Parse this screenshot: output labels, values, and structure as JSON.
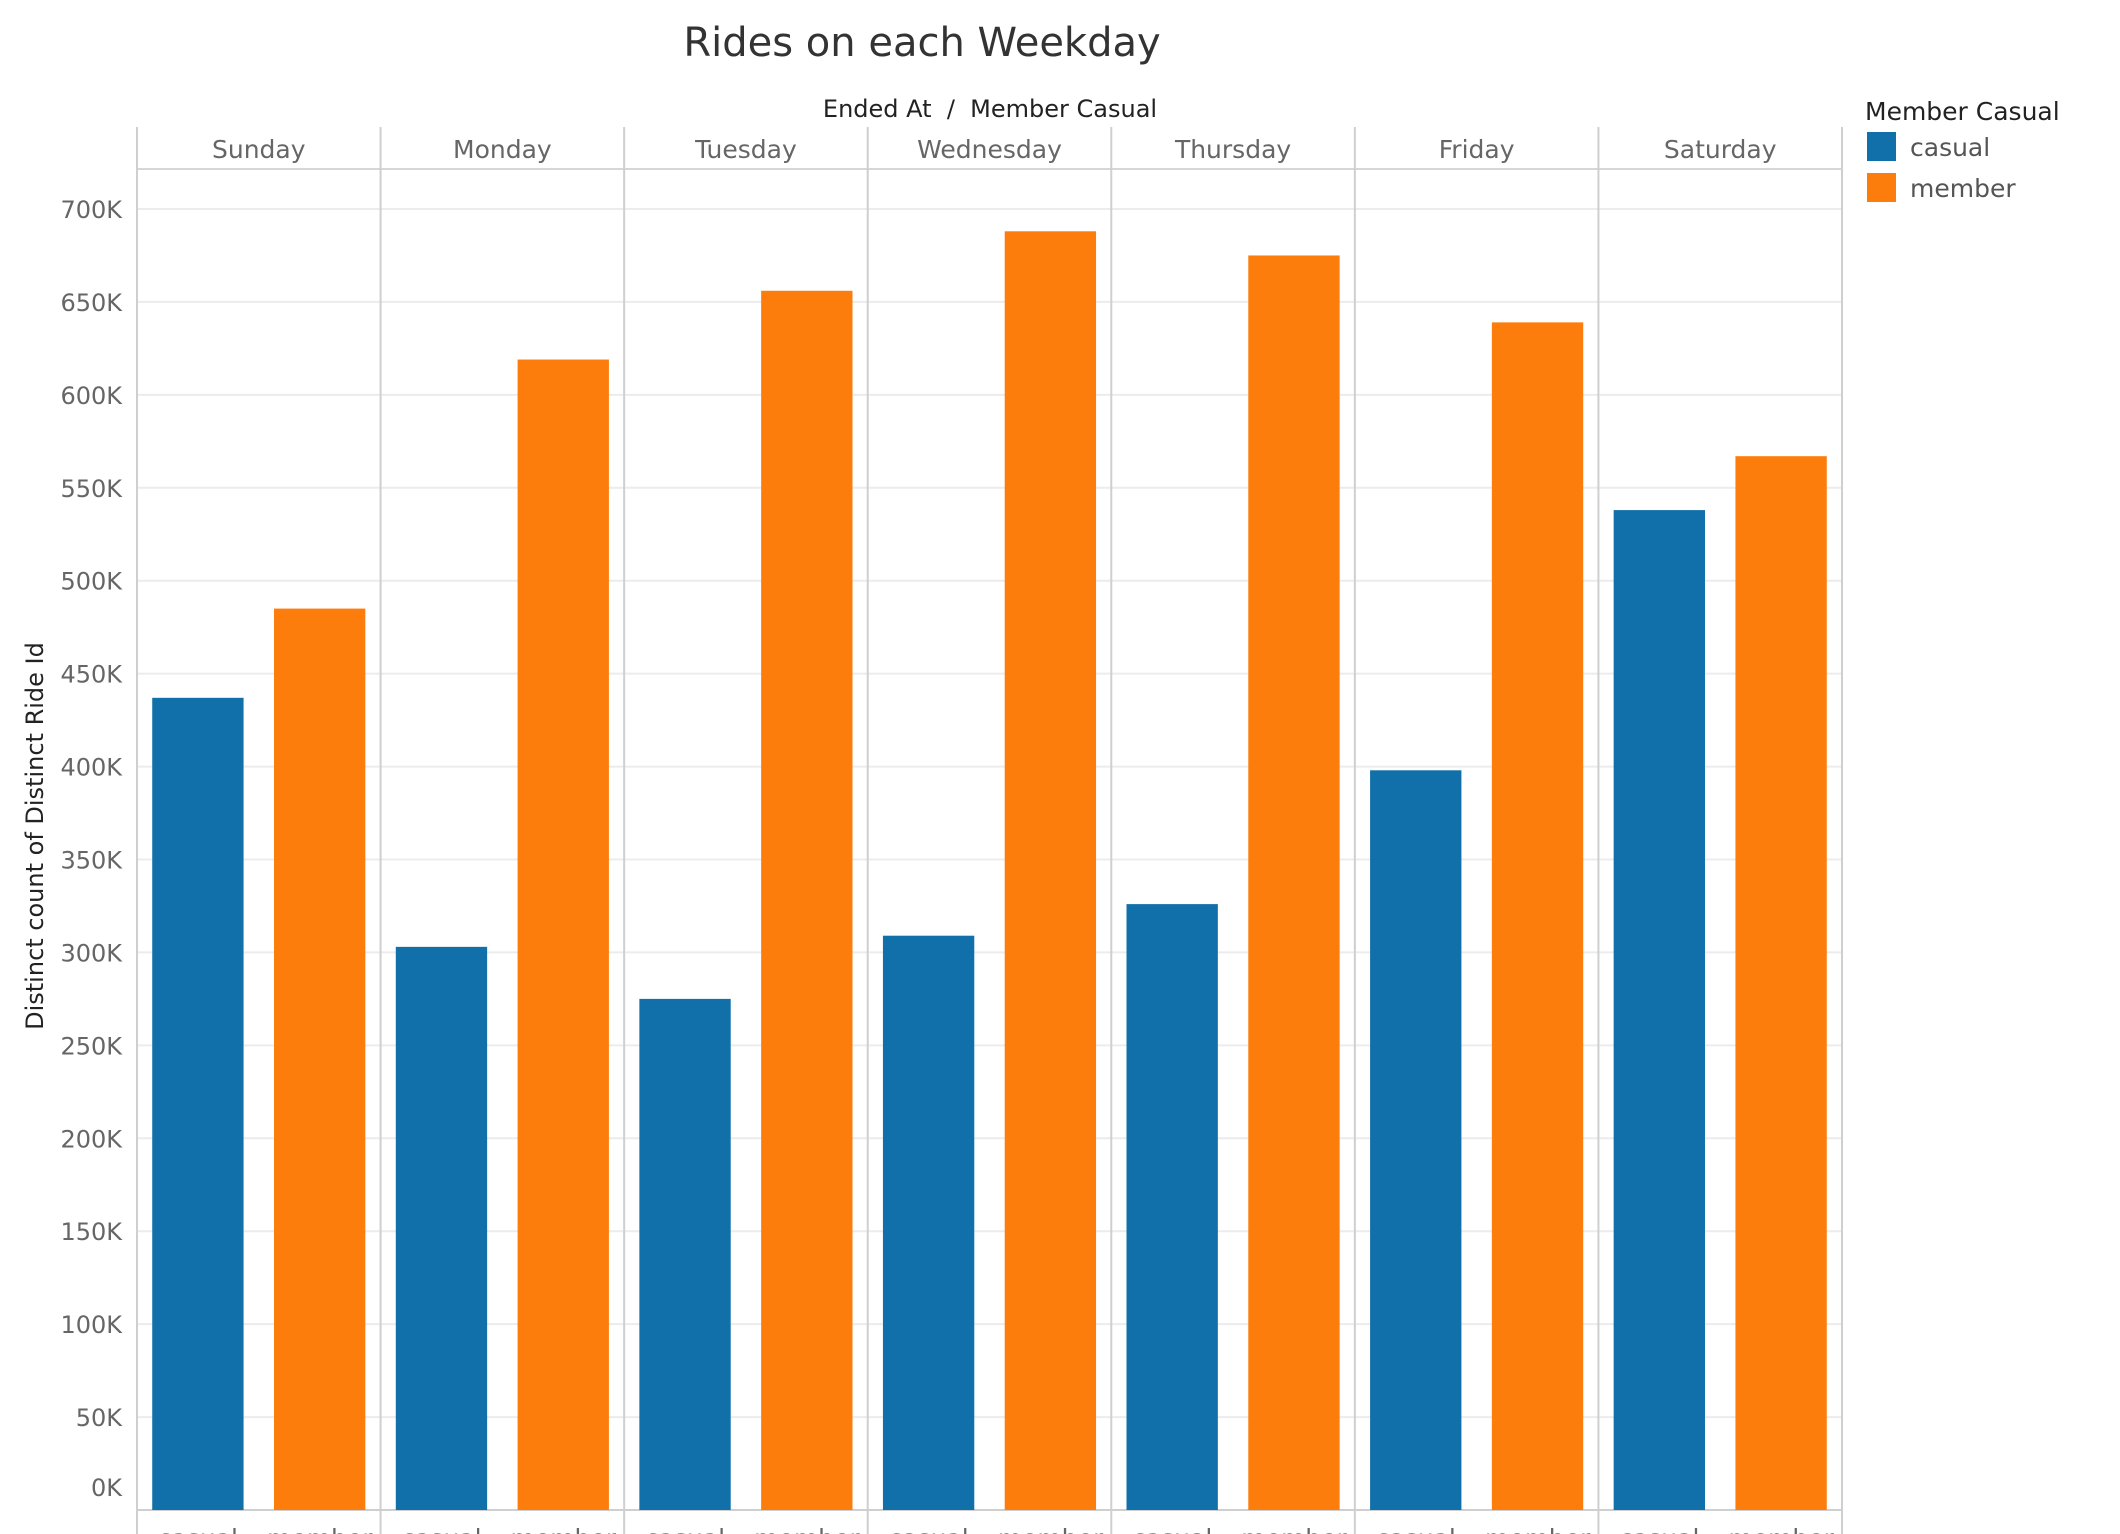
{
  "chart_data": {
    "type": "bar",
    "title": "Rides on each Weekday",
    "header_title": "Ended At  /  Member Casual",
    "ylabel": "Distinct count of Distinct Ride Id",
    "xlabel": "",
    "ylim": [
      0,
      700000
    ],
    "yticks": [
      0,
      50000,
      100000,
      150000,
      200000,
      250000,
      300000,
      350000,
      400000,
      450000,
      500000,
      550000,
      600000,
      650000,
      700000
    ],
    "ytick_labels": [
      "0K",
      "50K",
      "100K",
      "150K",
      "200K",
      "250K",
      "300K",
      "350K",
      "400K",
      "450K",
      "500K",
      "550K",
      "600K",
      "650K",
      "700K"
    ],
    "categories": [
      "Sunday",
      "Monday",
      "Tuesday",
      "Wednesday",
      "Thursday",
      "Friday",
      "Saturday"
    ],
    "grid": true,
    "legend_placement": "top-right",
    "legend_title": "Member Casual",
    "series": [
      {
        "name": "casual",
        "color": "#1170aa",
        "values": [
          437000,
          303000,
          275000,
          309000,
          326000,
          398000,
          538000
        ]
      },
      {
        "name": "member",
        "color": "#fc7d0b",
        "values": [
          485000,
          619000,
          656000,
          688000,
          675000,
          639000,
          567000
        ]
      }
    ]
  }
}
